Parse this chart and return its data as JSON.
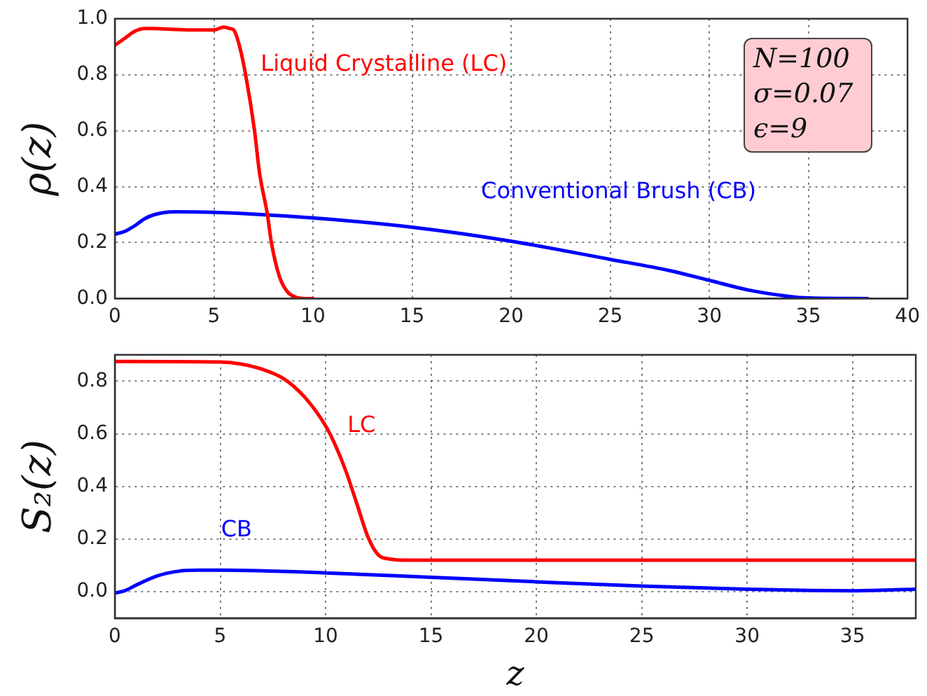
{
  "chart_data": [
    {
      "type": "line",
      "ylabel": "ρ(z)",
      "xlim": [
        0,
        40
      ],
      "xticks": [
        0,
        5,
        10,
        15,
        20,
        25,
        30,
        35,
        40
      ],
      "ylim": [
        0,
        1
      ],
      "yticks": [
        {
          "value": 0,
          "label": "0.0"
        },
        {
          "value": 0.2,
          "label": "0.2"
        },
        {
          "value": 0.4,
          "label": "0.4"
        },
        {
          "value": 0.6,
          "label": "0.6"
        },
        {
          "value": 0.8,
          "label": "0.8"
        },
        {
          "value": 1,
          "label": "1.0"
        }
      ],
      "grid": true,
      "legend": false,
      "marker": "none",
      "line_style": "solid",
      "annotations": [
        "N=100",
        "σ=0.07",
        "ϵ=9"
      ],
      "series": [
        {
          "name": "Liquid Crystalline (LC)",
          "color": "#ff0000",
          "x": [
            0,
            0.5,
            1,
            1.5,
            2,
            3,
            4,
            5,
            5.5,
            5.8,
            6,
            6.3,
            6.6,
            7.05,
            7.3,
            7.7,
            7.9,
            8.3,
            8.7,
            9.2,
            9.6,
            10
          ],
          "values": [
            0.905,
            0.93,
            0.955,
            0.965,
            0.965,
            0.962,
            0.96,
            0.96,
            0.97,
            0.965,
            0.96,
            0.9,
            0.8,
            0.6,
            0.45,
            0.3,
            0.2,
            0.08,
            0.025,
            0.003,
            0,
            0
          ]
        },
        {
          "name": "Conventional Brush (CB)",
          "color": "#0000ff",
          "x": [
            0,
            0.5,
            1,
            1.5,
            2,
            3,
            5,
            10,
            15,
            20,
            25,
            28,
            30,
            32,
            34,
            35,
            38
          ],
          "values": [
            0.23,
            0.24,
            0.26,
            0.285,
            0.3,
            0.31,
            0.308,
            0.288,
            0.255,
            0.205,
            0.14,
            0.1,
            0.065,
            0.03,
            0.008,
            0.002,
            0
          ]
        }
      ]
    },
    {
      "type": "line",
      "xlabel": "z",
      "ylabel": "S₂(z)",
      "xlim": [
        0,
        38
      ],
      "xticks": [
        0,
        5,
        10,
        15,
        20,
        25,
        30,
        35
      ],
      "ylim": [
        -0.1,
        0.9
      ],
      "yticks": [
        {
          "value": 0,
          "label": "0.0"
        },
        {
          "value": 0.2,
          "label": "0.2"
        },
        {
          "value": 0.4,
          "label": "0.4"
        },
        {
          "value": 0.6,
          "label": "0.6"
        },
        {
          "value": 0.8,
          "label": "0.8"
        }
      ],
      "grid": true,
      "legend": false,
      "marker": "none",
      "line_style": "solid",
      "series": [
        {
          "name": "LC",
          "color": "#ff0000",
          "x": [
            0,
            5,
            6,
            7,
            8,
            9,
            10,
            10.5,
            11,
            11.5,
            12,
            12.5,
            13,
            14,
            38
          ],
          "values": [
            0.875,
            0.873,
            0.865,
            0.845,
            0.81,
            0.74,
            0.63,
            0.55,
            0.45,
            0.33,
            0.21,
            0.14,
            0.125,
            0.12,
            0.12
          ]
        },
        {
          "name": "CB",
          "color": "#0000ff",
          "x": [
            0,
            0.5,
            1,
            2,
            3,
            4,
            5,
            10,
            15,
            20,
            25,
            30,
            33,
            35,
            38
          ],
          "values": [
            -0.005,
            0.005,
            0.025,
            0.06,
            0.078,
            0.082,
            0.082,
            0.072,
            0.055,
            0.038,
            0.022,
            0.01,
            0.005,
            0.004,
            0.01
          ]
        }
      ]
    }
  ]
}
